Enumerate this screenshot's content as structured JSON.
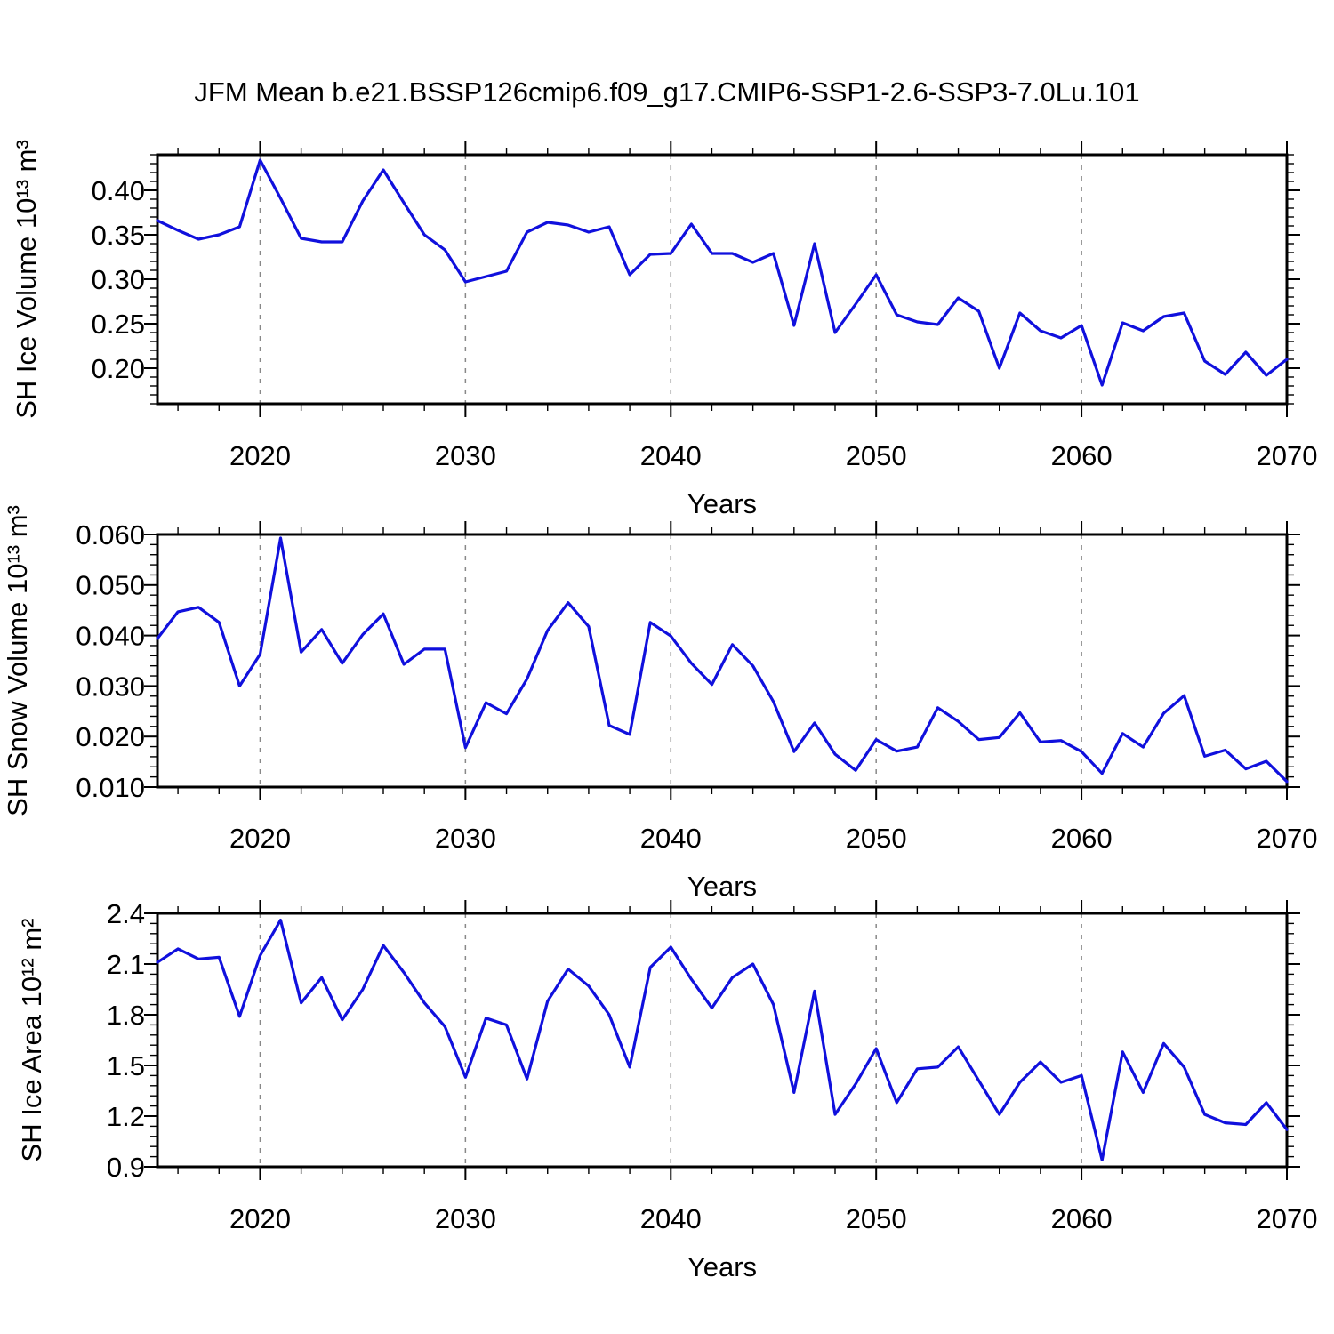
{
  "title": "JFM Mean b.e21.BSSP126cmip6.f09_g17.CMIP6-SSP1-2.6-SSP3-7.0Lu.101",
  "line_color": "#1010dd",
  "grid_color": "#888888",
  "axis_color": "#000000",
  "chart_data": {
    "type": "line",
    "x_label": "Years",
    "x_ticks": [
      2020,
      2030,
      2040,
      2050,
      2060,
      2070
    ],
    "x_tick_labels": [
      "2020",
      "2030",
      "2040",
      "2050",
      "2060",
      "2070"
    ],
    "x_minor_tick_step": 2,
    "gridlines_at_x": [
      2020,
      2030,
      2040,
      2050,
      2060
    ],
    "grid_style": "vertical-dashed",
    "legend": "none",
    "years": [
      2015,
      2016,
      2017,
      2018,
      2019,
      2020,
      2021,
      2022,
      2023,
      2024,
      2025,
      2026,
      2027,
      2028,
      2029,
      2030,
      2031,
      2032,
      2033,
      2034,
      2035,
      2036,
      2037,
      2038,
      2039,
      2040,
      2041,
      2042,
      2043,
      2044,
      2045,
      2046,
      2047,
      2048,
      2049,
      2050,
      2051,
      2052,
      2053,
      2054,
      2055,
      2056,
      2057,
      2058,
      2059,
      2060,
      2061,
      2062,
      2063,
      2064,
      2065,
      2066,
      2067,
      2068,
      2069,
      2070
    ],
    "xlim": [
      2015,
      2070
    ],
    "panels": [
      {
        "name": "sh-ice-volume",
        "ylabel": "SH Ice Volume 10¹³ m³",
        "ylim": [
          0.16,
          0.44
        ],
        "yticks": [
          0.2,
          0.25,
          0.3,
          0.35,
          0.4
        ],
        "ytick_labels": [
          "0.20",
          "0.25",
          "0.30",
          "0.35",
          "0.40"
        ],
        "y_minor_step": 0.01,
        "values": [
          0.366,
          0.355,
          0.345,
          0.35,
          0.359,
          0.434,
          0.391,
          0.346,
          0.342,
          0.342,
          0.388,
          0.423,
          0.386,
          0.35,
          0.333,
          0.297,
          0.303,
          0.309,
          0.353,
          0.364,
          0.361,
          0.353,
          0.359,
          0.305,
          0.328,
          0.329,
          0.362,
          0.329,
          0.329,
          0.319,
          0.329,
          0.248,
          0.34,
          0.24,
          0.272,
          0.305,
          0.26,
          0.252,
          0.249,
          0.279,
          0.264,
          0.2,
          0.262,
          0.242,
          0.234,
          0.248,
          0.181,
          0.251,
          0.242,
          0.258,
          0.262,
          0.208,
          0.193,
          0.218,
          0.192,
          0.21
        ]
      },
      {
        "name": "sh-snow-volume",
        "ylabel": "SH Snow Volume 10¹³ m³",
        "ylim": [
          0.01,
          0.06
        ],
        "yticks": [
          0.01,
          0.02,
          0.03,
          0.04,
          0.05,
          0.06
        ],
        "ytick_labels": [
          "0.010",
          "0.020",
          "0.030",
          "0.040",
          "0.050",
          "0.060"
        ],
        "y_minor_step": 0.002,
        "values": [
          0.0394,
          0.0447,
          0.0456,
          0.0426,
          0.03,
          0.0363,
          0.0593,
          0.0367,
          0.0412,
          0.0345,
          0.0402,
          0.0443,
          0.0343,
          0.0373,
          0.0373,
          0.0178,
          0.0267,
          0.0245,
          0.0314,
          0.041,
          0.0465,
          0.0418,
          0.0222,
          0.0204,
          0.0426,
          0.0399,
          0.0345,
          0.0303,
          0.0382,
          0.034,
          0.0269,
          0.017,
          0.0227,
          0.0165,
          0.0133,
          0.0194,
          0.0171,
          0.0179,
          0.0257,
          0.023,
          0.0194,
          0.0198,
          0.0247,
          0.0189,
          0.0192,
          0.017,
          0.0127,
          0.0206,
          0.0179,
          0.0246,
          0.0281,
          0.0161,
          0.0173,
          0.0136,
          0.0151,
          0.0111
        ]
      },
      {
        "name": "sh-ice-area",
        "ylabel": "SH Ice Area 10¹² m²",
        "ylim": [
          0.9,
          2.4
        ],
        "yticks": [
          0.9,
          1.2,
          1.5,
          1.8,
          2.1,
          2.4
        ],
        "ytick_labels": [
          "0.9",
          "1.2",
          "1.5",
          "1.8",
          "2.1",
          "2.4"
        ],
        "y_minor_step": 0.06,
        "values": [
          2.11,
          2.19,
          2.13,
          2.14,
          1.79,
          2.15,
          2.36,
          1.87,
          2.02,
          1.77,
          1.95,
          2.21,
          2.05,
          1.87,
          1.73,
          1.43,
          1.78,
          1.74,
          1.42,
          1.88,
          2.07,
          1.97,
          1.8,
          1.49,
          2.08,
          2.2,
          2.01,
          1.84,
          2.02,
          2.1,
          1.86,
          1.34,
          1.94,
          1.21,
          1.39,
          1.6,
          1.28,
          1.48,
          1.49,
          1.61,
          1.41,
          1.21,
          1.4,
          1.52,
          1.4,
          1.44,
          0.94,
          1.58,
          1.34,
          1.63,
          1.49,
          1.21,
          1.16,
          1.15,
          1.28,
          1.12
        ]
      }
    ]
  }
}
